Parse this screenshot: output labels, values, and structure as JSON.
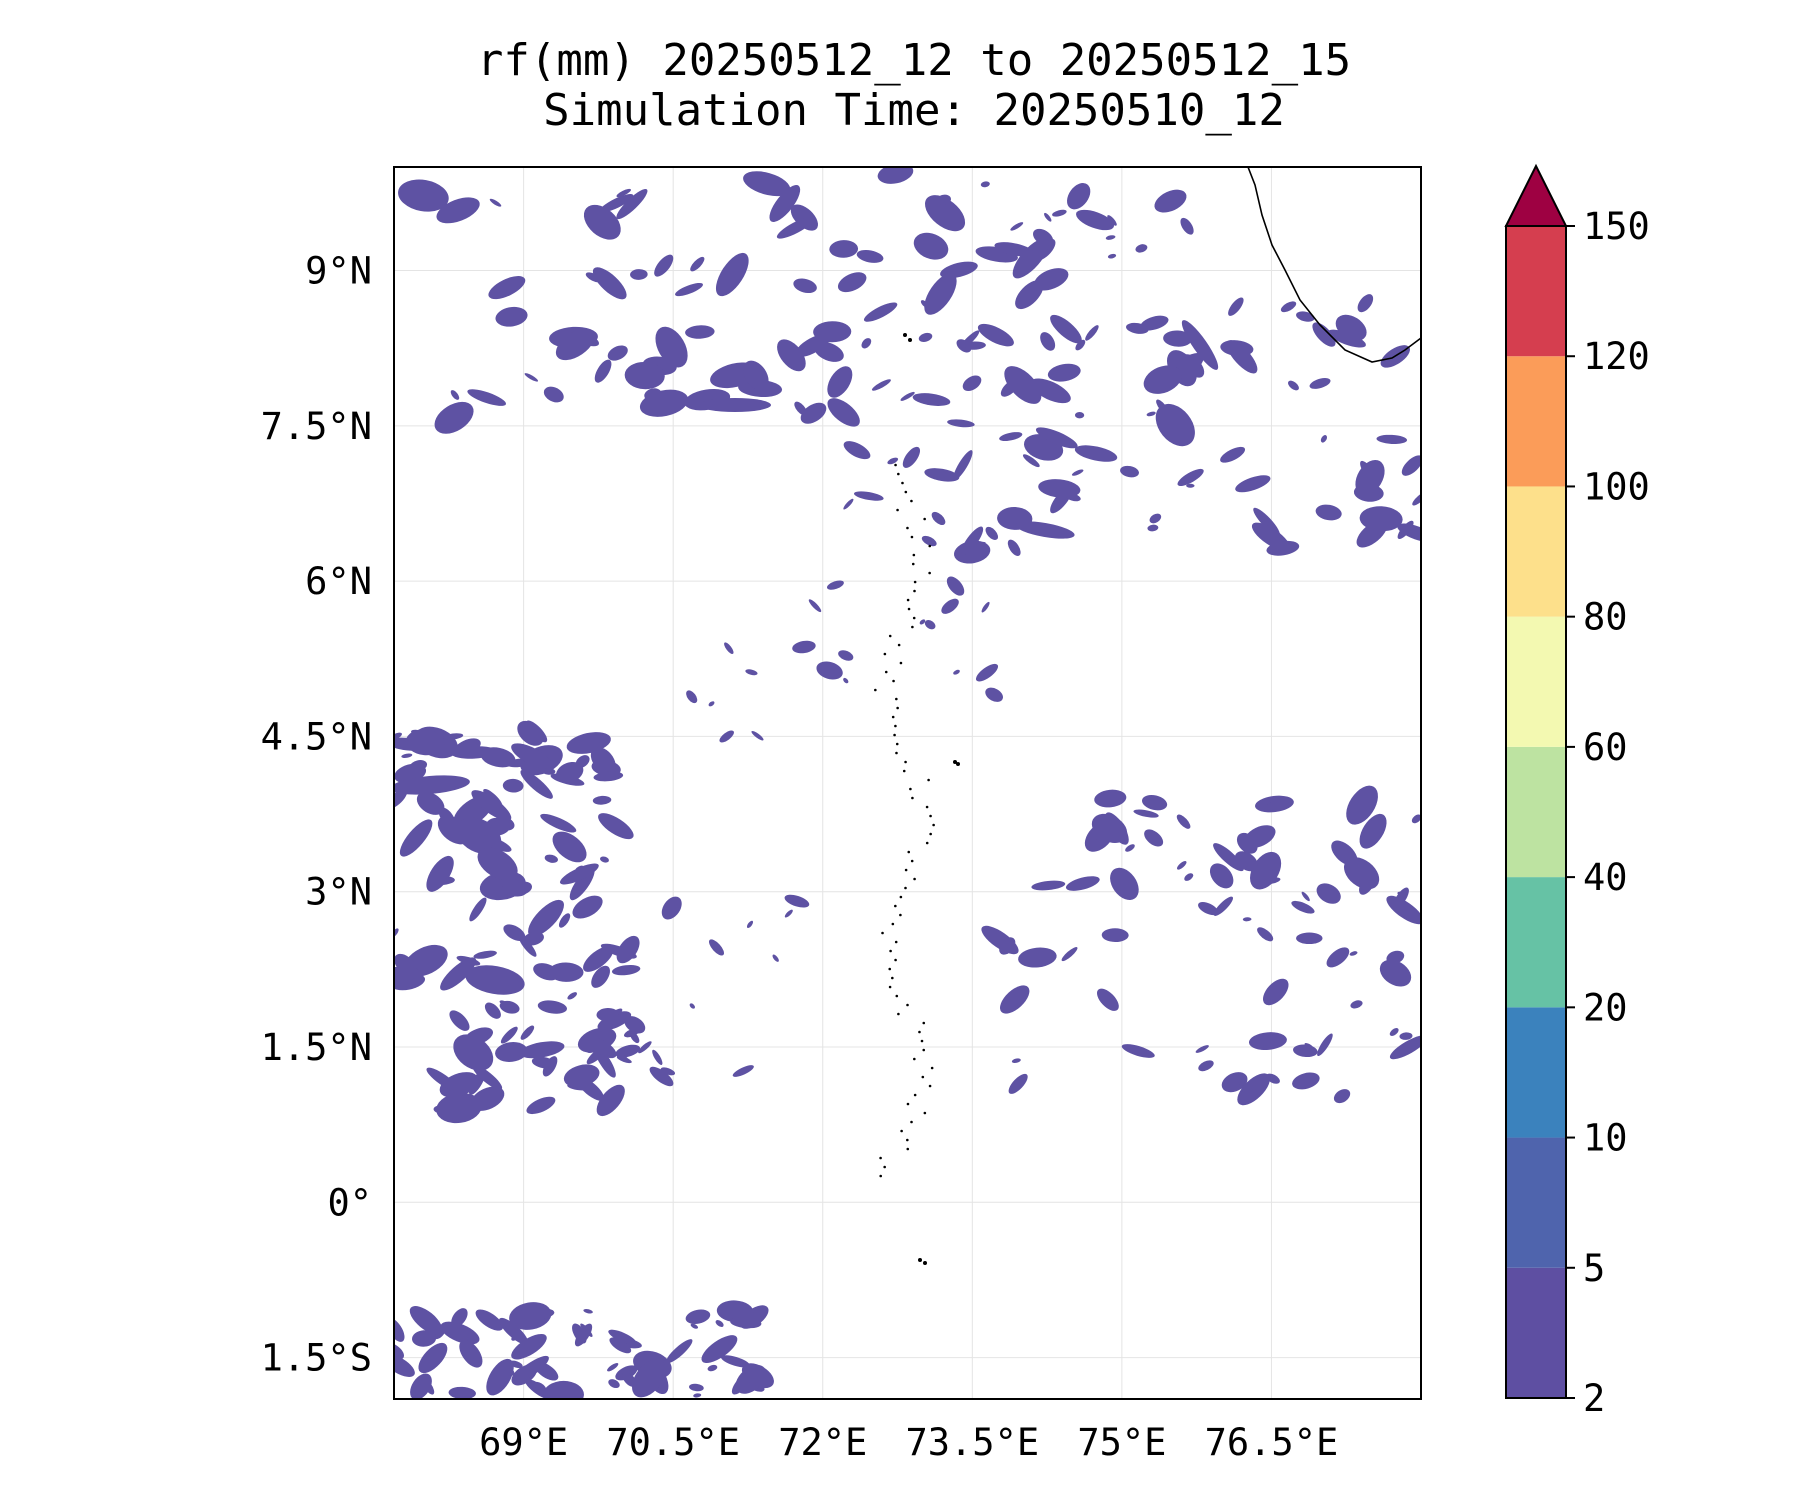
{
  "title": {
    "line1": "rf(mm) 20250512_12 to 20250512_15",
    "line2": "Simulation Time: 20250510_12"
  },
  "map": {
    "lon_range": [
      67.7,
      78.0
    ],
    "lat_range": [
      -1.9,
      10.0
    ],
    "x_ticks": [
      {
        "value": 69.0,
        "label": "69°E"
      },
      {
        "value": 70.5,
        "label": "70.5°E"
      },
      {
        "value": 72.0,
        "label": "72°E"
      },
      {
        "value": 73.5,
        "label": "73.5°E"
      },
      {
        "value": 75.0,
        "label": "75°E"
      },
      {
        "value": 76.5,
        "label": "76.5°E"
      }
    ],
    "y_ticks": [
      {
        "value": 9.0,
        "label": "9°N"
      },
      {
        "value": 7.5,
        "label": "7.5°N"
      },
      {
        "value": 6.0,
        "label": "6°N"
      },
      {
        "value": 4.5,
        "label": "4.5°N"
      },
      {
        "value": 3.0,
        "label": "3°N"
      },
      {
        "value": 1.5,
        "label": "1.5°N"
      },
      {
        "value": 0.0,
        "label": "0°"
      },
      {
        "value": -1.5,
        "label": "1.5°S"
      }
    ],
    "grid": true,
    "rain_color": "#5e52a3"
  },
  "colorbar": {
    "levels": [
      "2",
      "5",
      "10",
      "20",
      "40",
      "60",
      "80",
      "100",
      "120",
      "150"
    ],
    "colors": [
      "#5e4fa2",
      "#4f64ad",
      "#3b82bd",
      "#66c2a5",
      "#bde3a1",
      "#f3f9b1",
      "#fde08b",
      "#fb9c59",
      "#d53e4f"
    ],
    "extend_color": "#9e0142"
  }
}
